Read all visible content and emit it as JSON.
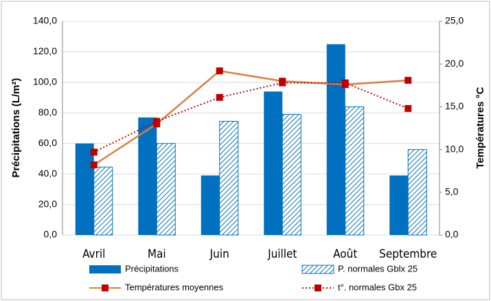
{
  "chart_data": {
    "type": "bar",
    "categories": [
      "Avril",
      "Mai",
      "Juin",
      "Juillet",
      "Août",
      "Septembre"
    ],
    "y_label": "Précipitations (L/m²)",
    "y2_label": "Températures °C",
    "ylim": [
      0,
      140
    ],
    "yticks": [
      {
        "value": 0,
        "label": "0,0"
      },
      {
        "value": 20,
        "label": "20,0"
      },
      {
        "value": 40,
        "label": "40,0"
      },
      {
        "value": 60,
        "label": "60,0"
      },
      {
        "value": 80,
        "label": "80,0"
      },
      {
        "value": 100,
        "label": "100,0"
      },
      {
        "value": 120,
        "label": "120,0"
      },
      {
        "value": 140,
        "label": "140,0"
      }
    ],
    "y2lim": [
      0,
      25
    ],
    "y2ticks": [
      {
        "value": 0,
        "label": "0,0"
      },
      {
        "value": 5,
        "label": "5,0"
      },
      {
        "value": 10,
        "label": "10,0"
      },
      {
        "value": 15,
        "label": "15,0"
      },
      {
        "value": 20,
        "label": "20,0"
      },
      {
        "value": 25,
        "label": "25,0"
      }
    ],
    "grid": true,
    "series": [
      {
        "name": "Précipitations",
        "type": "bar",
        "color": "#0070c0",
        "values": [
          60,
          77,
          39,
          94,
          125,
          39
        ]
      },
      {
        "name": "P. normales Gblx 25",
        "type": "bar",
        "pattern": "hatch",
        "color": "#0070c0",
        "values": [
          44.5,
          60,
          74.5,
          79,
          84,
          56
        ]
      },
      {
        "name": "Températures moyennes",
        "type": "line",
        "axis": "y2",
        "color": "#e07b39",
        "marker_color": "#c00000",
        "values": [
          8.2,
          13.0,
          19.2,
          18.0,
          17.6,
          18.1
        ]
      },
      {
        "name": "t°. normales Gbx 25",
        "type": "line",
        "axis": "y2",
        "dash": "dotted",
        "color": "#c00000",
        "marker_color": "#c00000",
        "values": [
          9.7,
          13.3,
          16.1,
          17.8,
          17.8,
          14.8
        ]
      }
    ]
  }
}
